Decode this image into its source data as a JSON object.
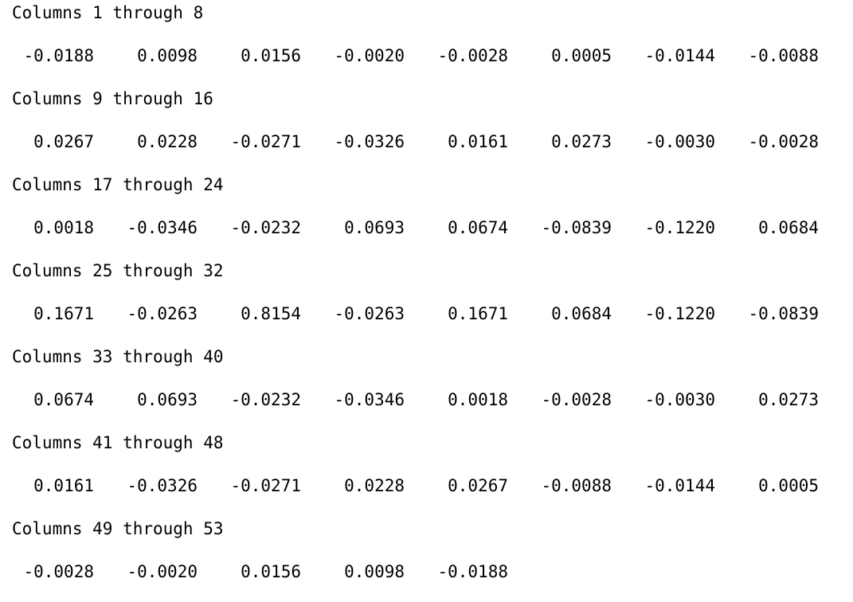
{
  "console": {
    "blocks": [
      {
        "header": "Columns 1 through 8",
        "values": [
          "-0.0188",
          "0.0098",
          "0.0156",
          "-0.0020",
          "-0.0028",
          "0.0005",
          "-0.0144",
          "-0.0088"
        ]
      },
      {
        "header": "Columns 9 through 16",
        "values": [
          "0.0267",
          "0.0228",
          "-0.0271",
          "-0.0326",
          "0.0161",
          "0.0273",
          "-0.0030",
          "-0.0028"
        ]
      },
      {
        "header": "Columns 17 through 24",
        "values": [
          "0.0018",
          "-0.0346",
          "-0.0232",
          "0.0693",
          "0.0674",
          "-0.0839",
          "-0.1220",
          "0.0684"
        ]
      },
      {
        "header": "Columns 25 through 32",
        "values": [
          "0.1671",
          "-0.0263",
          "0.8154",
          "-0.0263",
          "0.1671",
          "0.0684",
          "-0.1220",
          "-0.0839"
        ]
      },
      {
        "header": "Columns 33 through 40",
        "values": [
          "0.0674",
          "0.0693",
          "-0.0232",
          "-0.0346",
          "0.0018",
          "-0.0028",
          "-0.0030",
          "0.0273"
        ]
      },
      {
        "header": "Columns 41 through 48",
        "values": [
          "0.0161",
          "-0.0326",
          "-0.0271",
          "0.0228",
          "0.0267",
          "-0.0088",
          "-0.0144",
          "0.0005"
        ]
      },
      {
        "header": "Columns 49 through 53",
        "values": [
          "-0.0028",
          "-0.0020",
          "0.0156",
          "0.0098",
          "-0.0188"
        ]
      }
    ]
  }
}
